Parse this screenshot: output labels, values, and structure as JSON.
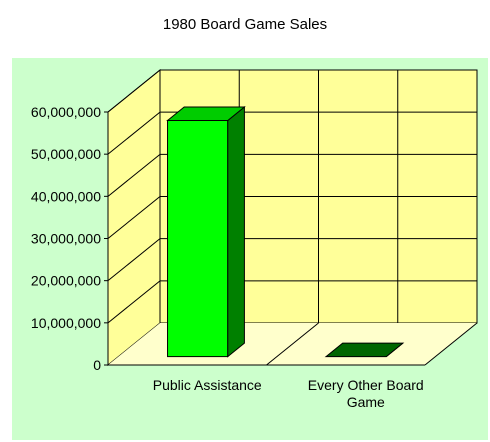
{
  "chart_data": {
    "type": "bar",
    "title": "1980 Board Game Sales",
    "categories": [
      "Public Assistance",
      "Every Other Board Game"
    ],
    "category_label_lines": [
      [
        "Public Assistance"
      ],
      [
        "Every Other Board",
        "Game"
      ]
    ],
    "values": [
      56000000,
      0
    ],
    "ylim": [
      0,
      60000000
    ],
    "y_ticks": [
      "0",
      "10,000,000",
      "20,000,000",
      "30,000,000",
      "40,000,000",
      "50,000,000",
      "60,000,000"
    ],
    "grid": true,
    "legend": "none",
    "style": "3d"
  },
  "colors": {
    "page_background": "#ccffcc",
    "floor": "#ffffcc",
    "back_wall": "#ffff99",
    "side_wall": "#ffff99",
    "grid_line": "#000000",
    "bar_front": [
      "#00ff00",
      "#006600"
    ],
    "bar_top": [
      "#00cc00",
      "#006600"
    ],
    "bar_side": [
      "#008000",
      "#006600"
    ]
  }
}
